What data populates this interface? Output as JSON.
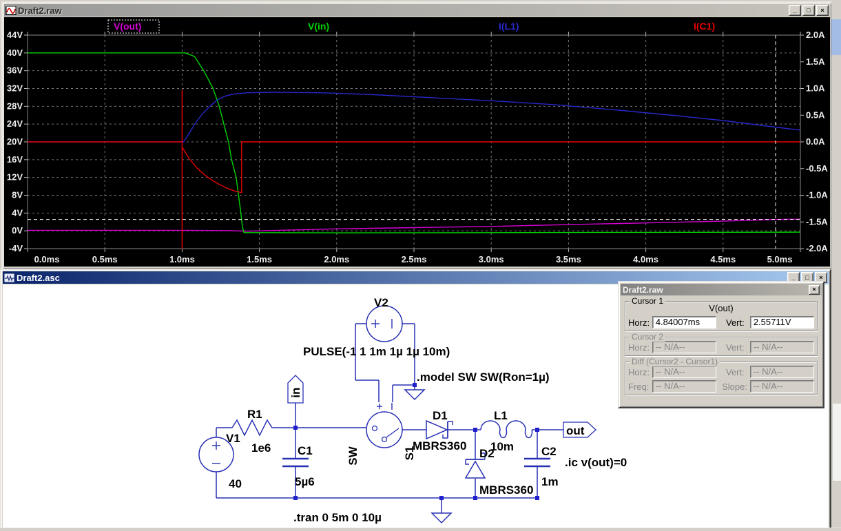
{
  "icons": {
    "minimize_glyph": "_",
    "maximize_glyph": "□",
    "close_glyph": "×"
  },
  "raw_window": {
    "title": "Draft2.raw"
  },
  "schematic_window": {
    "title": "Draft2.asc"
  },
  "chart_data": {
    "type": "line",
    "x": {
      "unit": "ms",
      "min": 0,
      "max": 5,
      "tick_values": [
        0,
        0.5,
        1,
        1.5,
        2,
        2.5,
        3,
        3.5,
        4,
        4.5,
        5
      ],
      "tick_labels": [
        "0.0ms",
        "0.5ms",
        "1.0ms",
        "1.5ms",
        "2.0ms",
        "2.5ms",
        "3.0ms",
        "3.5ms",
        "4.0ms",
        "4.5ms",
        "5.0ms"
      ]
    },
    "y_left": {
      "unit": "V",
      "min": -4,
      "max": 44,
      "tick_values": [
        44,
        40,
        36,
        32,
        28,
        24,
        20,
        16,
        12,
        8,
        4,
        0,
        -4
      ],
      "tick_labels": [
        "44V",
        "40V",
        "36V",
        "32V",
        "28V",
        "24V",
        "20V",
        "16V",
        "12V",
        "8V",
        "4V",
        "0V",
        "-4V"
      ]
    },
    "y_right": {
      "unit": "A",
      "min": -2,
      "max": 2,
      "tick_values": [
        2,
        1.5,
        1,
        0.5,
        0,
        -0.5,
        -1,
        -1.5,
        -2
      ],
      "tick_labels": [
        "2.0A",
        "1.5A",
        "1.0A",
        "0.5A",
        "0.0A",
        "-0.5A",
        "-1.0A",
        "-1.5A",
        "-2.0A"
      ]
    },
    "series": [
      {
        "name": "V(out)",
        "color": "#d400d4",
        "axis": "left",
        "selected": true,
        "points": [
          [
            0,
            0.12
          ],
          [
            1.0,
            0.12
          ],
          [
            1.3,
            0.05
          ],
          [
            1.42,
            -0.08
          ],
          [
            1.5,
            0.0
          ],
          [
            1.7,
            0.2
          ],
          [
            2.0,
            0.45
          ],
          [
            2.5,
            0.72
          ],
          [
            3.0,
            0.98
          ],
          [
            3.5,
            1.4
          ],
          [
            4.0,
            1.78
          ],
          [
            4.5,
            2.18
          ],
          [
            4.84,
            2.557
          ],
          [
            5.0,
            2.62
          ]
        ]
      },
      {
        "name": "V(in)",
        "color": "#00d400",
        "axis": "left",
        "points": [
          [
            0,
            40
          ],
          [
            1.02,
            40
          ],
          [
            1.08,
            39.2
          ],
          [
            1.14,
            36
          ],
          [
            1.2,
            32
          ],
          [
            1.24,
            28
          ],
          [
            1.27,
            24
          ],
          [
            1.3,
            20
          ],
          [
            1.32,
            16
          ],
          [
            1.35,
            12
          ],
          [
            1.365,
            8
          ],
          [
            1.38,
            4
          ],
          [
            1.39,
            1
          ],
          [
            1.4,
            -0.4
          ],
          [
            2.0,
            -0.45
          ],
          [
            3.0,
            -0.4
          ],
          [
            4.0,
            -0.35
          ],
          [
            5.0,
            -0.3
          ]
        ]
      },
      {
        "name": "I(L1)",
        "color": "#2828cc",
        "axis": "right",
        "points": [
          [
            0,
            0
          ],
          [
            1.01,
            0
          ],
          [
            1.05,
            0.18
          ],
          [
            1.09,
            0.37
          ],
          [
            1.13,
            0.52
          ],
          [
            1.18,
            0.67
          ],
          [
            1.23,
            0.79
          ],
          [
            1.28,
            0.86
          ],
          [
            1.34,
            0.9
          ],
          [
            1.42,
            0.92
          ],
          [
            1.6,
            0.93
          ],
          [
            1.9,
            0.92
          ],
          [
            2.2,
            0.89
          ],
          [
            2.6,
            0.83
          ],
          [
            3.0,
            0.77
          ],
          [
            3.4,
            0.7
          ],
          [
            3.8,
            0.6
          ],
          [
            4.2,
            0.49
          ],
          [
            4.5,
            0.4
          ],
          [
            4.8,
            0.29
          ],
          [
            5.0,
            0.22
          ]
        ]
      },
      {
        "name": "I(C1)",
        "color": "#e80000",
        "axis": "right",
        "points": [
          [
            0,
            0
          ],
          [
            1.0,
            0
          ],
          [
            1.0,
            0.97
          ],
          [
            1.0,
            -2.0
          ],
          [
            1.0,
            -0.1
          ],
          [
            1.05,
            -0.33
          ],
          [
            1.1,
            -0.5
          ],
          [
            1.15,
            -0.63
          ],
          [
            1.2,
            -0.73
          ],
          [
            1.25,
            -0.81
          ],
          [
            1.3,
            -0.88
          ],
          [
            1.34,
            -0.92
          ],
          [
            1.385,
            -0.95
          ],
          [
            1.385,
            0
          ],
          [
            5.0,
            0
          ]
        ]
      }
    ],
    "cursor": {
      "x_ms": 4.84007,
      "y_value": 2.55711,
      "y_axis": "left"
    },
    "grid": true,
    "legend_position": "top"
  },
  "schematic": {
    "texts": {
      "v2_ref": "V2",
      "v2_value": "PULSE(-1 1 1m 1µ 1µ 10m)",
      "model": ".model SW SW(Ron=1µ)",
      "r1_ref": "R1",
      "r1_value": "1e6",
      "v1_ref": "V1",
      "v1_value": "40",
      "c1_ref": "C1",
      "c1_value": "5µ6",
      "d1_ref": "D1",
      "d1_value": "MBRS360",
      "l1_ref": "L1",
      "l1_value": "10m",
      "d2_ref": "D2",
      "d2_value": "MBRS360",
      "c2_ref": "C2",
      "c2_value": "1m",
      "ic": ".ic v(out)=0",
      "tran": ".tran 0 5m 0 10µ",
      "sw_ref": "SW",
      "s1_ref": "S1",
      "net_in": "in",
      "net_out": "out"
    }
  },
  "cursor_panel": {
    "title": "Draft2.raw",
    "labels": {
      "horz": "Horz:",
      "vert": "Vert:",
      "freq": "Freq:",
      "slope": "Slope:"
    },
    "cursor1": {
      "label": "Cursor 1",
      "signal": "V(out)",
      "horz": "4.84007ms",
      "vert": "2.55711V"
    },
    "cursor2": {
      "label": "Cursor 2",
      "horz": "-- N/A--",
      "vert": "-- N/A--"
    },
    "diff": {
      "label": "Diff (Cursor2 - Cursor1)",
      "horz": "-- N/A--",
      "vert": "-- N/A--",
      "freq": "-- N/A--",
      "slope": "-- N/A--"
    }
  }
}
